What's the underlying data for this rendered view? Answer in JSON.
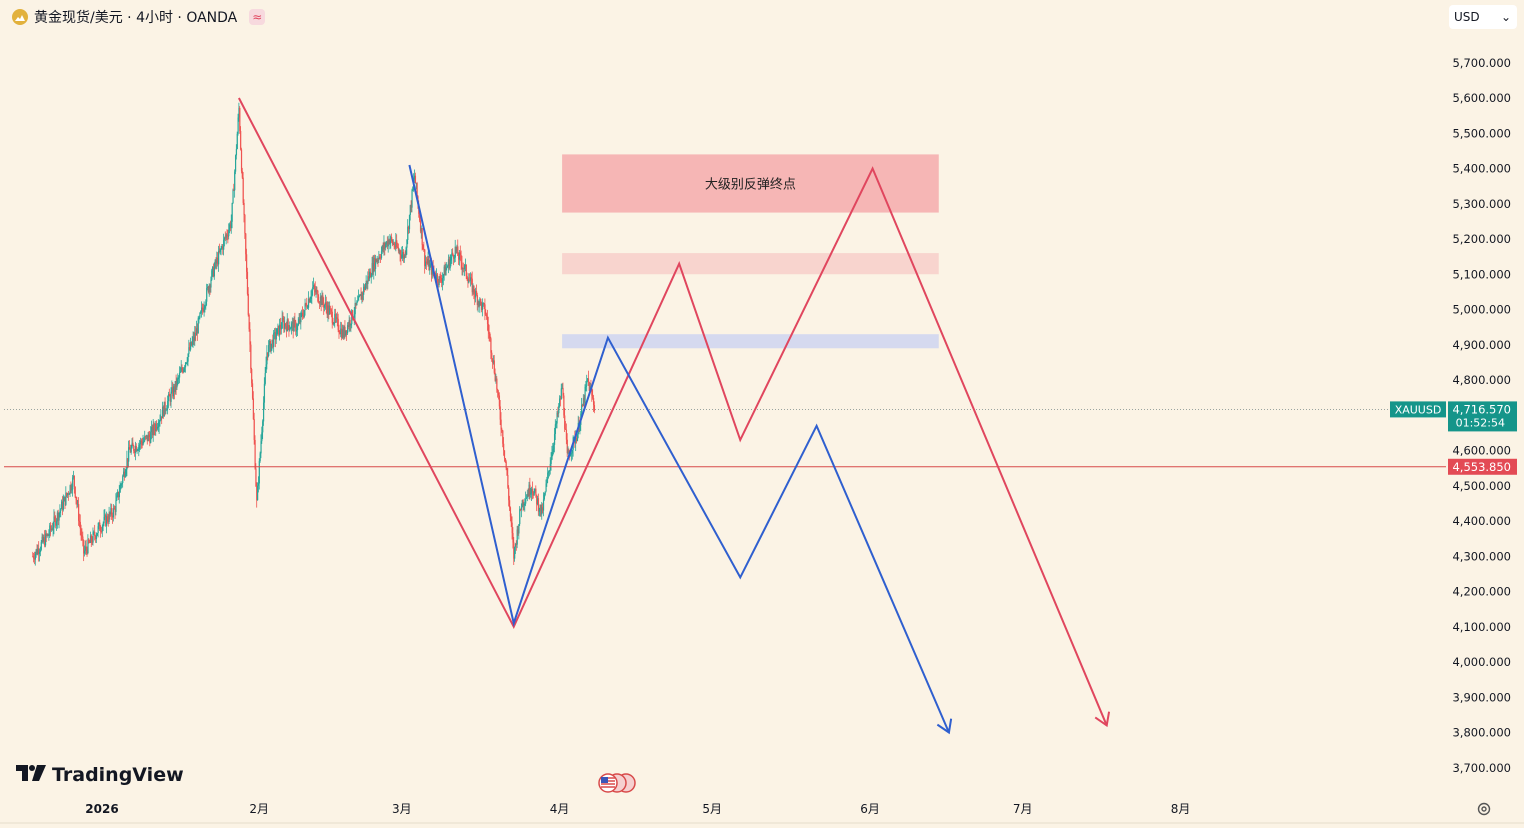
{
  "header": {
    "symbol_title": "黄金现货/美元 · 4小时 · OANDA",
    "coin_icon": "gold-coin-icon",
    "wave_icon": "≈"
  },
  "currency_selector": {
    "value": "USD",
    "chevron": "⌄"
  },
  "branding": {
    "name": "TradingView",
    "logo_icon": "tradingview-logo-icon"
  },
  "colors": {
    "background": "#fbf3e5",
    "up_candle": "#26a69a",
    "down_candle": "#ef5350",
    "red_path": "#e0465e",
    "blue_path": "#2f5fcf",
    "price_line": "#d84a4a",
    "current_price_tag": "#15958a",
    "support_tag": "#e34a54"
  },
  "chart_data": {
    "type": "candlestick",
    "symbol": "XAUUSD",
    "timeframe": "4小时",
    "y_axis": {
      "ticks": [
        "5,700.000",
        "5,600.000",
        "5,500.000",
        "5,400.000",
        "5,300.000",
        "5,200.000",
        "5,100.000",
        "5,000.000",
        "4,900.000",
        "4,800.000",
        "4,600.000",
        "4,500.000",
        "4,400.000",
        "4,300.000",
        "4,200.000",
        "4,100.000",
        "4,000.000",
        "3,900.000",
        "3,800.000",
        "3,700.000"
      ],
      "tick_values": [
        5700,
        5600,
        5500,
        5400,
        5300,
        5200,
        5100,
        5000,
        4900,
        4800,
        4600,
        4500,
        4400,
        4300,
        4200,
        4100,
        4000,
        3900,
        3800,
        3700
      ],
      "range": [
        3650,
        5800
      ]
    },
    "x_axis": {
      "labels": [
        "2026",
        "2月",
        "3月",
        "4月",
        "5月",
        "6月",
        "7月",
        "8月"
      ],
      "label_dates": [
        0,
        30.5,
        58.5,
        89.5,
        119.5,
        150.5,
        180.5,
        211.5
      ]
    },
    "price_series_anchors": [
      {
        "d": -14,
        "p": 4300
      },
      {
        "d": -11,
        "p": 4360
      },
      {
        "d": -8,
        "p": 4450
      },
      {
        "d": -6,
        "p": 4520
      },
      {
        "d": -4,
        "p": 4310
      },
      {
        "d": -1,
        "p": 4380
      },
      {
        "d": 2,
        "p": 4430
      },
      {
        "d": 5,
        "p": 4600
      },
      {
        "d": 9,
        "p": 4640
      },
      {
        "d": 14,
        "p": 4780
      },
      {
        "d": 18,
        "p": 4930
      },
      {
        "d": 21,
        "p": 5090
      },
      {
        "d": 25,
        "p": 5250
      },
      {
        "d": 26.5,
        "p": 5570
      },
      {
        "d": 27.5,
        "p": 5250
      },
      {
        "d": 29,
        "p": 4800
      },
      {
        "d": 30,
        "p": 4450
      },
      {
        "d": 32,
        "p": 4880
      },
      {
        "d": 35,
        "p": 4960
      },
      {
        "d": 38,
        "p": 4950
      },
      {
        "d": 41,
        "p": 5060
      },
      {
        "d": 44,
        "p": 5000
      },
      {
        "d": 47,
        "p": 4930
      },
      {
        "d": 50,
        "p": 5020
      },
      {
        "d": 53,
        "p": 5130
      },
      {
        "d": 56,
        "p": 5200
      },
      {
        "d": 59,
        "p": 5150
      },
      {
        "d": 61,
        "p": 5380
      },
      {
        "d": 63,
        "p": 5140
      },
      {
        "d": 66,
        "p": 5080
      },
      {
        "d": 69,
        "p": 5170
      },
      {
        "d": 71,
        "p": 5110
      },
      {
        "d": 73,
        "p": 5040
      },
      {
        "d": 75,
        "p": 4990
      },
      {
        "d": 77,
        "p": 4800
      },
      {
        "d": 79,
        "p": 4550
      },
      {
        "d": 80.5,
        "p": 4300
      },
      {
        "d": 82,
        "p": 4450
      },
      {
        "d": 84,
        "p": 4500
      },
      {
        "d": 86,
        "p": 4420
      },
      {
        "d": 88,
        "p": 4600
      },
      {
        "d": 90,
        "p": 4780
      },
      {
        "d": 91,
        "p": 4580
      },
      {
        "d": 93,
        "p": 4650
      },
      {
        "d": 95,
        "p": 4800
      },
      {
        "d": 96.5,
        "p": 4717
      }
    ],
    "current_price": {
      "label": "XAUUSD",
      "value": "4,716.570",
      "countdown": "01:52:54",
      "numeric": 4716.57
    },
    "support_level": {
      "value": "4,553.850",
      "numeric": 4553.85
    },
    "zones": [
      {
        "name": "major-rebound-zone",
        "label": "大级别反弹终点",
        "from_price": 5275,
        "to_price": 5440,
        "start_date": 90,
        "end_date": 164,
        "color": "#f5b2b2"
      },
      {
        "name": "minor-resistance-zone",
        "label": "",
        "from_price": 5100,
        "to_price": 5160,
        "start_date": 90,
        "end_date": 164,
        "color": "#f8d2cc"
      },
      {
        "name": "blue-zone",
        "label": "",
        "from_price": 4890,
        "to_price": 4930,
        "start_date": 90,
        "end_date": 164,
        "color": "#d3d7ef"
      }
    ],
    "projection_paths": [
      {
        "name": "red-path",
        "color": "#e0465e",
        "points": [
          {
            "d": 26.5,
            "p": 5600
          },
          {
            "d": 80.5,
            "p": 4100
          },
          {
            "d": 113,
            "p": 5130
          },
          {
            "d": 125,
            "p": 4630
          },
          {
            "d": 151,
            "p": 5400
          },
          {
            "d": 197,
            "p": 3820
          }
        ]
      },
      {
        "name": "blue-path",
        "color": "#2f5fcf",
        "points": [
          {
            "d": 60,
            "p": 5410
          },
          {
            "d": 80.5,
            "p": 4110
          },
          {
            "d": 99,
            "p": 4920
          },
          {
            "d": 125,
            "p": 4240
          },
          {
            "d": 140,
            "p": 4670
          },
          {
            "d": 166,
            "p": 3800
          }
        ]
      }
    ]
  }
}
